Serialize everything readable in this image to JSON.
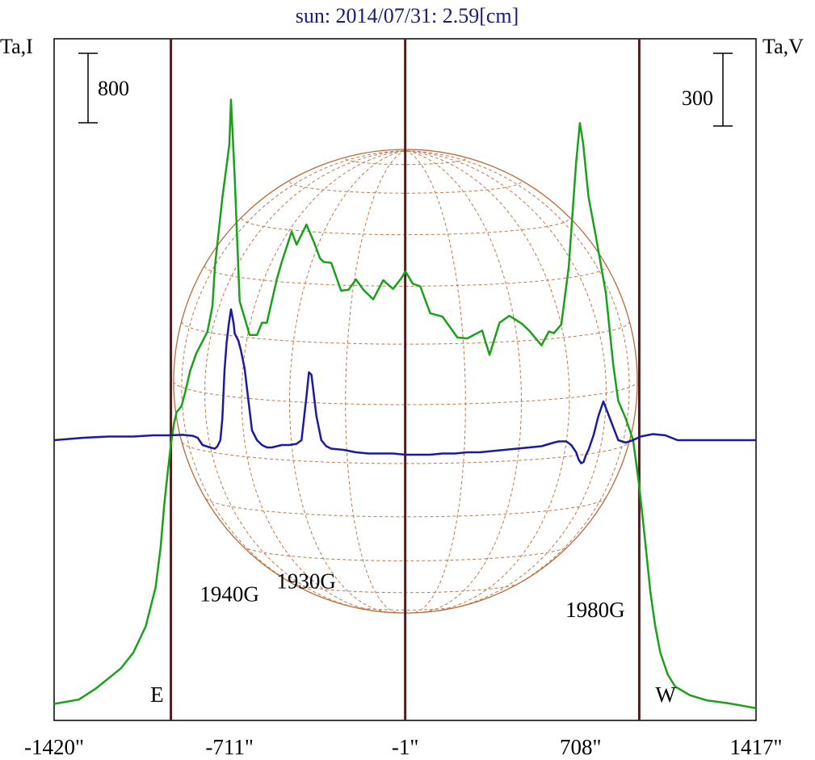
{
  "chart_data": {
    "type": "line",
    "title": "sun: 2014/07/31: 2.59[cm]",
    "left_axis_label": "Ta,I",
    "right_axis_label": "Ta,V",
    "x_unit": "arcsec",
    "xlim": [
      -1420,
      1417
    ],
    "x_ticks": [
      {
        "value": -1420,
        "label": "-1420\""
      },
      {
        "value": -711,
        "label": "-711\""
      },
      {
        "value": -1,
        "label": "-1\""
      },
      {
        "value": 708,
        "label": "708\""
      },
      {
        "value": 1417,
        "label": "1417\""
      }
    ],
    "limb_markers": [
      {
        "label": "E",
        "x": -948
      },
      {
        "label": "W",
        "x": 945
      }
    ],
    "center_marker_x": -1,
    "scale_bars": [
      {
        "side": "left",
        "label": "800",
        "value": 800
      },
      {
        "side": "right",
        "label": "300",
        "value": 300
      }
    ],
    "disk_grid": true,
    "annotations": [
      {
        "text": "1940G",
        "x": -711,
        "y": 1240
      },
      {
        "text": "1930G",
        "x": -401,
        "y": 1390
      },
      {
        "text": "1980G",
        "x": 767,
        "y": 1060
      }
    ],
    "series": [
      {
        "axis": "left",
        "color": "#1aa01a",
        "x": [
          -1420,
          -1320,
          -1250,
          -1150,
          -1100,
          -1050,
          -1010,
          -990,
          -975,
          -960,
          -948,
          -935,
          -925,
          -905,
          -890,
          -870,
          -845,
          -800,
          -780,
          -770,
          -740,
          -712,
          -705,
          -690,
          -670,
          -630,
          -600,
          -580,
          -560,
          -520,
          -500,
          -460,
          -440,
          -400,
          -370,
          -345,
          -330,
          -300,
          -260,
          -230,
          -200,
          -170,
          -130,
          -90,
          -50,
          -20,
          0,
          30,
          60,
          100,
          150,
          210,
          250,
          310,
          340,
          380,
          420,
          470,
          500,
          550,
          580,
          600,
          630,
          660,
          690,
          705,
          718,
          740,
          770,
          810,
          840,
          860,
          890,
          920,
          945,
          970,
          990,
          1010,
          1030,
          1060,
          1090,
          1150,
          1220,
          1300,
          1360,
          1417
        ],
        "y": [
          60,
          110,
          240,
          470,
          650,
          950,
          1400,
          1850,
          2350,
          2750,
          3050,
          3300,
          3420,
          3490,
          3650,
          3900,
          4100,
          4350,
          4640,
          5100,
          5890,
          6500,
          7020,
          6120,
          4700,
          4310,
          4310,
          4450,
          4450,
          4950,
          5150,
          5500,
          5350,
          5580,
          5380,
          5190,
          5150,
          5140,
          4820,
          4830,
          4950,
          4830,
          4720,
          4940,
          4840,
          4950,
          5040,
          4900,
          4870,
          4560,
          4520,
          4280,
          4270,
          4360,
          4080,
          4450,
          4530,
          4440,
          4360,
          4190,
          4350,
          4330,
          4430,
          5090,
          6300,
          6750,
          6520,
          5900,
          5440,
          4790,
          3960,
          3550,
          3350,
          3100,
          2570,
          1900,
          1350,
          950,
          650,
          400,
          260,
          160,
          100,
          70,
          40,
          10
        ]
      },
      {
        "axis": "right",
        "color": "#1a1aa0",
        "x": [
          -1420,
          -1300,
          -1200,
          -1100,
          -1020,
          -960,
          -900,
          -860,
          -840,
          -820,
          -790,
          -770,
          -760,
          -748,
          -740,
          -731,
          -723,
          -714,
          -705,
          -695,
          -690,
          -675,
          -665,
          -650,
          -640,
          -620,
          -600,
          -580,
          -560,
          -540,
          -520,
          -500,
          -470,
          -440,
          -420,
          -400,
          -390,
          -380,
          -360,
          -340,
          -320,
          -300,
          -250,
          -200,
          -150,
          -100,
          -50,
          0,
          50,
          100,
          150,
          200,
          250,
          300,
          350,
          400,
          450,
          500,
          550,
          600,
          620,
          650,
          670,
          690,
          700,
          710,
          720,
          730,
          740,
          760,
          780,
          800,
          830,
          860,
          890,
          920,
          950,
          1000,
          1050,
          1100,
          1200,
          1300,
          1417
        ],
        "y": [
          0,
          10,
          15,
          15,
          20,
          20,
          22,
          18,
          10,
          -20,
          -30,
          -35,
          -25,
          0,
          90,
          290,
          400,
          480,
          540,
          485,
          440,
          410,
          370,
          295,
          210,
          40,
          0,
          -20,
          -30,
          -30,
          -25,
          -20,
          -20,
          -15,
          0,
          180,
          280,
          270,
          100,
          0,
          -25,
          -35,
          -40,
          -50,
          -55,
          -55,
          -55,
          -60,
          -60,
          -60,
          -55,
          -55,
          -50,
          -50,
          -45,
          -40,
          -35,
          -30,
          -25,
          -10,
          -5,
          -5,
          -20,
          -50,
          -80,
          -95,
          -90,
          -60,
          -40,
          20,
          100,
          160,
          80,
          0,
          -10,
          0,
          15,
          25,
          20,
          0,
          0,
          0,
          0
        ]
      }
    ]
  }
}
